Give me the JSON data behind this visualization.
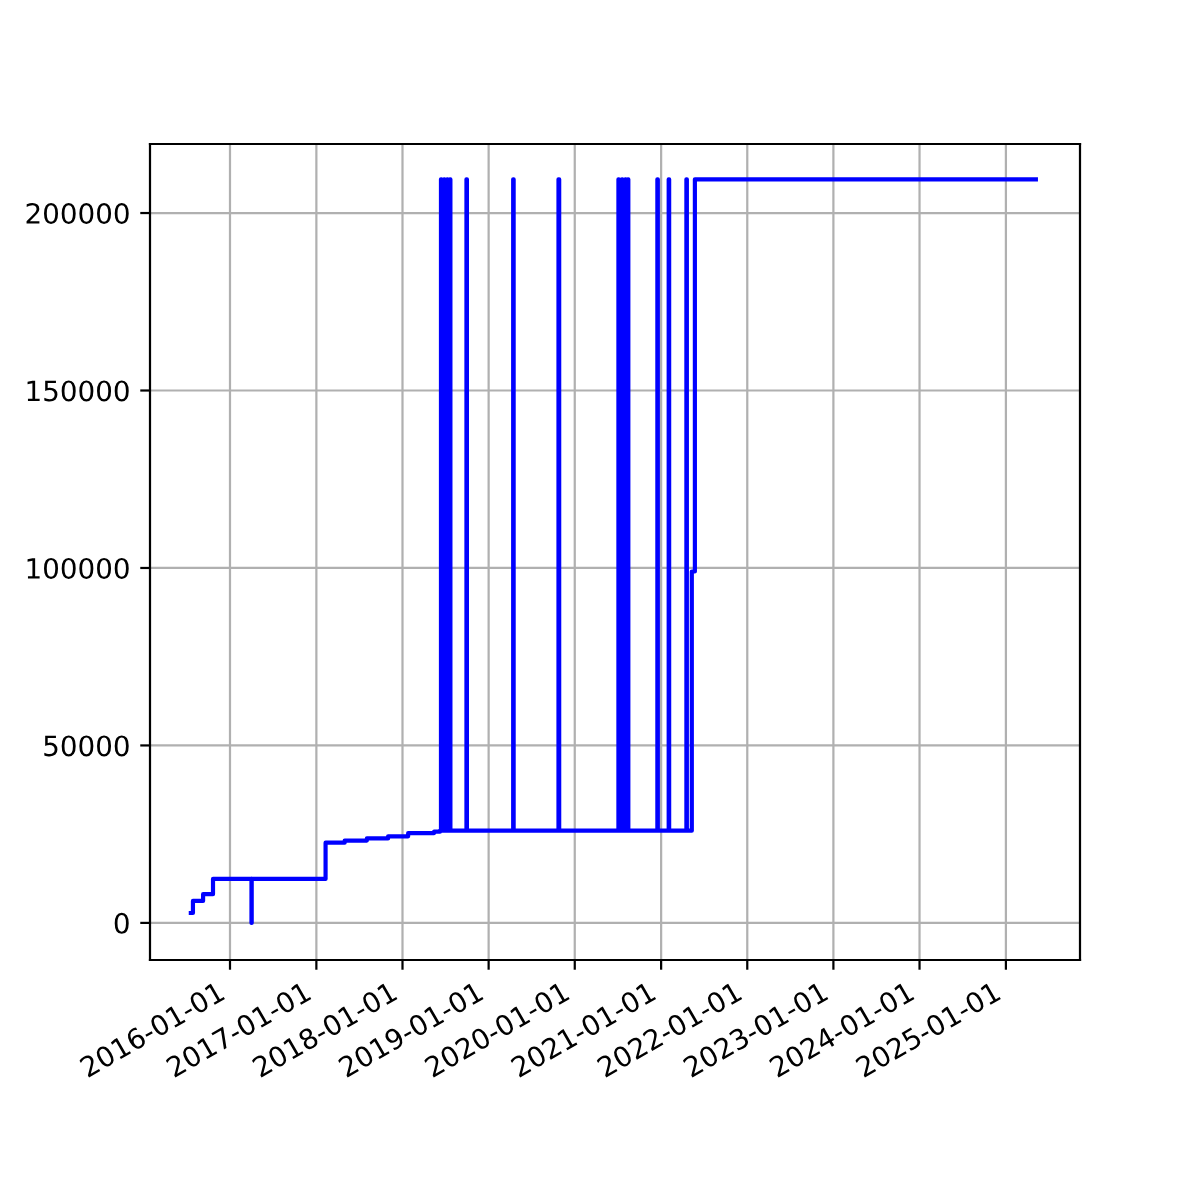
{
  "chart_data": {
    "type": "line",
    "x": [
      "2015-07-19",
      "2015-07-28",
      "2015-07-28",
      "2015-09-09",
      "2015-09-09",
      "2015-10-21",
      "2015-10-21",
      "2016-04-01",
      "2016-04-01",
      "2016-04-02",
      "2016-04-02",
      "2017-02-09",
      "2017-02-09",
      "2017-05-01",
      "2017-05-01",
      "2017-08-03",
      "2017-08-03",
      "2017-11-01",
      "2017-11-01",
      "2018-01-25",
      "2018-01-25",
      "2018-05-15",
      "2018-05-15",
      "2018-06-09",
      "2018-06-09",
      "2018-06-13",
      "2018-06-13",
      "2018-06-15",
      "2018-06-15",
      "2018-06-26",
      "2018-06-26",
      "2018-06-28",
      "2018-06-28",
      "2018-07-09",
      "2018-07-09",
      "2018-07-11",
      "2018-07-11",
      "2018-07-21",
      "2018-07-21",
      "2018-07-23",
      "2018-07-23",
      "2018-09-29",
      "2018-09-29",
      "2018-10-01",
      "2018-10-01",
      "2019-04-15",
      "2019-04-15",
      "2019-04-17",
      "2019-04-17",
      "2019-10-24",
      "2019-10-24",
      "2019-10-27",
      "2019-10-27",
      "2020-07-04",
      "2020-07-04",
      "2020-07-06",
      "2020-07-06",
      "2020-07-19",
      "2020-07-19",
      "2020-07-21",
      "2020-07-21",
      "2020-08-02",
      "2020-08-02",
      "2020-08-04",
      "2020-08-04",
      "2020-08-13",
      "2020-08-13",
      "2020-08-15",
      "2020-08-15",
      "2020-12-16",
      "2020-12-16",
      "2020-12-18",
      "2020-12-18",
      "2021-02-02",
      "2021-02-02",
      "2021-02-04",
      "2021-02-04",
      "2021-04-18",
      "2021-04-18",
      "2021-04-20",
      "2021-04-20",
      "2021-05-11",
      "2021-05-11",
      "2021-05-24",
      "2021-05-24",
      "2025-05-08"
    ],
    "series": [
      {
        "color": "#0000ff",
        "values": [
          2800,
          2800,
          6200,
          6200,
          8100,
          8100,
          12400,
          12400,
          0,
          0,
          12400,
          12400,
          22600,
          22600,
          23200,
          23200,
          23800,
          23800,
          24400,
          24400,
          25300,
          25300,
          25700,
          25700,
          26000,
          26000,
          209500,
          209500,
          26000,
          26000,
          209500,
          209500,
          26000,
          26000,
          209500,
          209500,
          26000,
          26000,
          209500,
          209500,
          26000,
          26000,
          209500,
          209500,
          26000,
          26000,
          209500,
          209500,
          26000,
          26000,
          209500,
          209500,
          26000,
          26000,
          209500,
          209500,
          26000,
          26000,
          209500,
          209500,
          26000,
          26000,
          209500,
          209500,
          26000,
          26000,
          209500,
          209500,
          26000,
          26000,
          209500,
          209500,
          26000,
          26000,
          209500,
          209500,
          26000,
          26000,
          209500,
          209500,
          26000,
          26000,
          99000,
          99000,
          209500,
          209500
        ]
      }
    ],
    "xlim": [
      "2015-01-27",
      "2025-11-11"
    ],
    "xticks": [
      "2016-01-01",
      "2017-01-01",
      "2018-01-01",
      "2019-01-01",
      "2020-01-01",
      "2021-01-01",
      "2022-01-01",
      "2023-01-01",
      "2024-01-01",
      "2025-01-01"
    ],
    "ylim": [
      -10450,
      219450
    ],
    "yticks": [
      0,
      50000,
      100000,
      150000,
      200000
    ],
    "grid": true
  }
}
